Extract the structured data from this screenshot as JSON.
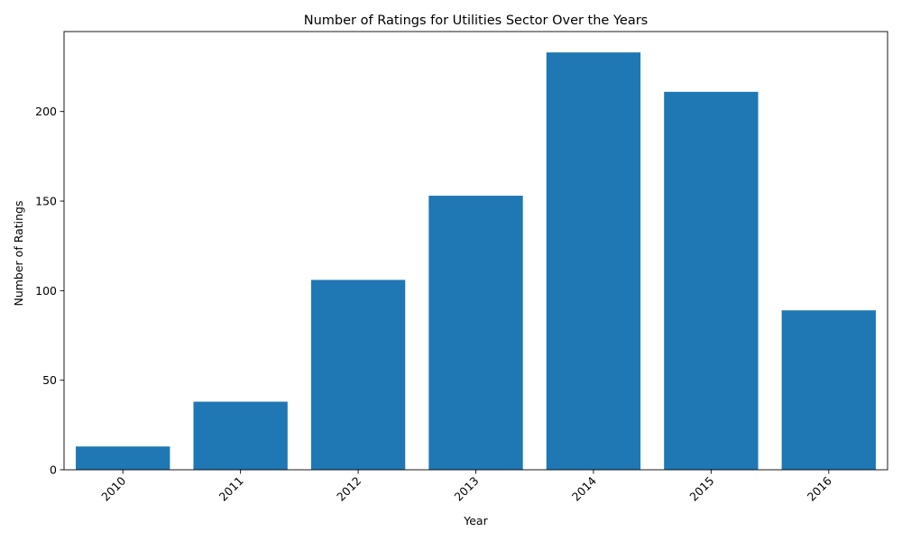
{
  "chart_data": {
    "type": "bar",
    "title": "Number of Ratings for Utilities Sector Over the Years",
    "xlabel": "Year",
    "ylabel": "Number of Ratings",
    "categories": [
      "2010",
      "2011",
      "2012",
      "2013",
      "2014",
      "2015",
      "2016"
    ],
    "values": [
      13,
      38,
      106,
      153,
      233,
      211,
      89
    ],
    "ylim": [
      0,
      244.65
    ],
    "yticks": [
      0,
      50,
      100,
      150,
      200
    ],
    "bar_color": "#1f77b4",
    "xtick_rotation": 45,
    "grid": false,
    "legend": "none"
  }
}
